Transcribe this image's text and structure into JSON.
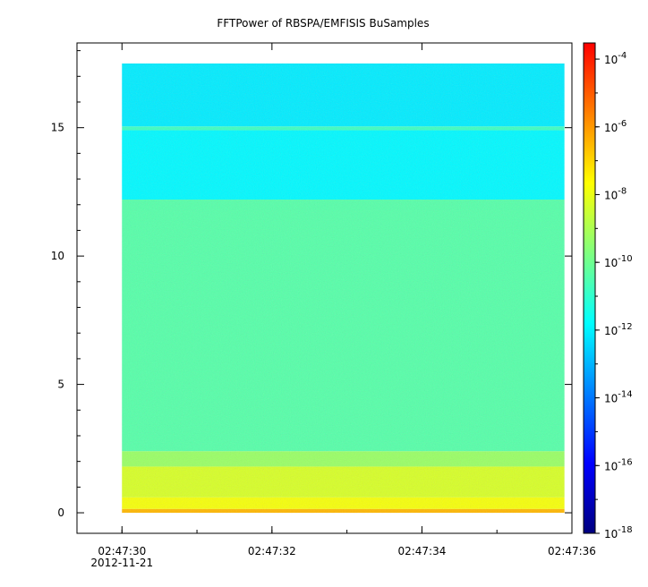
{
  "chart_data": {
    "type": "heatmap",
    "title": "FFTPower of RBSPA/EMFISIS  BuSamples",
    "x": {
      "ticks": [
        "02:47:30",
        "02:47:32",
        "02:47:34",
        "02:47:36"
      ],
      "date_label": "2012-11-21",
      "range_seconds_label": [
        "02:47:29.4",
        "02:47:36.0"
      ],
      "data_extent_label": [
        "02:47:30.0",
        "02:47:35.9"
      ]
    },
    "y": {
      "ticks": [
        0,
        5,
        10,
        15
      ],
      "range": [
        -0.8,
        18.3
      ],
      "data_extent": [
        0,
        17.5
      ]
    },
    "colorbar": {
      "scale": "log",
      "range": [
        1e-18,
        0.0003
      ],
      "tick_bases": [
        "10",
        "10",
        "10",
        "10",
        "10",
        "10",
        "10",
        "10"
      ],
      "tick_exponents": [
        "-4",
        "-6",
        "-8",
        "-10",
        "-12",
        "-14",
        "-16",
        "-18"
      ],
      "tick_values": [
        -4,
        -6,
        -8,
        -10,
        -12,
        -14,
        -16,
        -18
      ],
      "colormap": [
        "#00007f",
        "#0000ff",
        "#007fff",
        "#00ffff",
        "#7fff7f",
        "#ffff00",
        "#ff7f00",
        "#ff0000"
      ]
    },
    "bands": [
      {
        "y_from": 0.0,
        "y_to": 0.15,
        "log_power": -6.5
      },
      {
        "y_from": 0.15,
        "y_to": 0.6,
        "log_power": -7.8
      },
      {
        "y_from": 0.6,
        "y_to": 1.8,
        "log_power": -8.3
      },
      {
        "y_from": 1.8,
        "y_to": 2.4,
        "log_power": -9.3
      },
      {
        "y_from": 2.4,
        "y_to": 12.2,
        "log_power": -10.4
      },
      {
        "y_from": 12.2,
        "y_to": 14.9,
        "log_power": -11.9
      },
      {
        "y_from": 14.9,
        "y_to": 15.05,
        "log_power": -10.8
      },
      {
        "y_from": 15.05,
        "y_to": 17.5,
        "log_power": -12.1
      }
    ]
  }
}
